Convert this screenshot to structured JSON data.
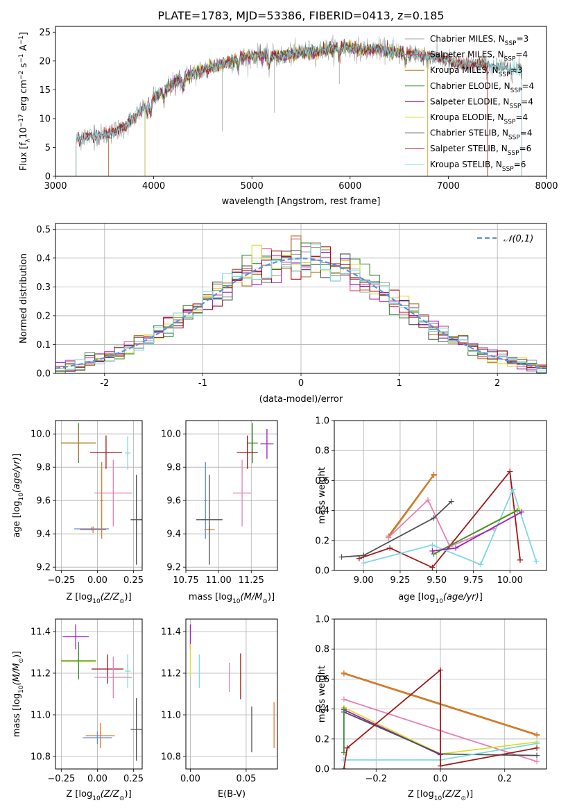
{
  "figure": {
    "title": "PLATE=1783, MJD=53386, FIBERID=0413, z=0.185"
  },
  "chart_data": [
    {
      "id": "spectrum",
      "type": "line",
      "title": "PLATE=1783, MJD=53386, FIBERID=0413, z=0.185",
      "xlabel": "wavelength [Angstrom, rest frame]",
      "ylabel": "Flux [f_λ 10^-17 erg cm^-2 s^-1 A^-1]",
      "xlim": [
        3000,
        8000
      ],
      "ylim": [
        0,
        26
      ],
      "xticks": [
        3000,
        4000,
        5000,
        6000,
        7000,
        8000
      ],
      "yticks": [
        0,
        5,
        10,
        15,
        20,
        25
      ],
      "legend_position": "top-right",
      "observed_spectrum": {
        "x": [
          3210,
          3300,
          3500,
          3700,
          3900,
          4000,
          4150,
          4300,
          4500,
          4700,
          4900,
          5100,
          5300,
          5500,
          5700,
          5900,
          6100,
          6300,
          6500,
          6700,
          6900,
          7100,
          7300,
          7500,
          7700
        ],
        "y": [
          6.2,
          6.8,
          7.2,
          8.5,
          11.8,
          13.5,
          15.5,
          17.0,
          18.5,
          19.5,
          20.5,
          21.0,
          20.8,
          21.5,
          21.8,
          22.5,
          22.0,
          22.0,
          21.5,
          21.0,
          20.5,
          19.5,
          19.5,
          19.0,
          18.5
        ]
      },
      "series": [
        {
          "name": "Chabrier MILES, N_SSP=3",
          "color": "#a0a0a0",
          "x_range": [
            3210,
            7750
          ]
        },
        {
          "name": "Salpeter MILES, N_SSP=4",
          "color": "#d4508a",
          "x_range": [
            3540,
            7400
          ]
        },
        {
          "name": "Kroupa MILES, N_SSP=3",
          "color": "#b07a28",
          "x_range": [
            3540,
            7400
          ]
        },
        {
          "name": "Chabrier ELODIE, N_SSP=4",
          "color": "#3d8a3d",
          "x_range": [
            3910,
            6790
          ]
        },
        {
          "name": "Salpeter ELODIE, N_SSP=4",
          "color": "#9b1fc0",
          "x_range": [
            3910,
            6790
          ]
        },
        {
          "name": "Kroupa ELODIE, N_SSP=4",
          "color": "#d6e02a",
          "x_range": [
            3910,
            6790
          ]
        },
        {
          "name": "Chabrier STELIB, N_SSP=4",
          "color": "#505050",
          "x_range": [
            3210,
            7750
          ]
        },
        {
          "name": "Salpeter STELIB, N_SSP=6",
          "color": "#a01818",
          "x_range": [
            3210,
            7400
          ]
        },
        {
          "name": "Kroupa STELIB, N_SSP=6",
          "color": "#7dd8e0",
          "x_range": [
            3210,
            7750
          ]
        }
      ],
      "legend": [
        "Chabrier MILES, N_SSP=3",
        "Salpeter MILES, N_SSP=4",
        "Kroupa MILES, N_SSP=3",
        "Chabrier ELODIE, N_SSP=4",
        "Salpeter ELODIE, N_SSP=4",
        "Kroupa ELODIE, N_SSP=4",
        "Chabrier STELIB, N_SSP=4",
        "Salpeter STELIB, N_SSP=6",
        "Kroupa STELIB, N_SSP=6"
      ]
    },
    {
      "id": "residuals",
      "type": "line",
      "xlabel": "(data-model)/error",
      "ylabel": "Normed distribution",
      "xlim": [
        -2.5,
        2.5
      ],
      "ylim": [
        0,
        0.52
      ],
      "xticks": [
        -2,
        -1,
        0,
        1,
        2
      ],
      "yticks": [
        0.0,
        0.1,
        0.2,
        0.3,
        0.4,
        0.5
      ],
      "grid": true,
      "legend_position": "top-right",
      "reference_curve": {
        "name": "𝒩(0,1)",
        "mean": 0,
        "sigma": 1,
        "color": "#5b8ee0",
        "style": "dashed"
      },
      "histogram": {
        "bin_width": 0.1,
        "range": [
          -2.5,
          2.5
        ]
      },
      "series_colors": [
        "#a0a0a0",
        "#d4508a",
        "#b07a28",
        "#3d8a3d",
        "#9b1fc0",
        "#d6e02a",
        "#505050",
        "#a01818",
        "#7dd8e0"
      ]
    },
    {
      "id": "age_vs_Z",
      "type": "scatter",
      "xlabel": "Z [log10(Z/Z⊙)]",
      "ylabel": "age [log10(age/yr)]",
      "xlim": [
        -0.29,
        0.31
      ],
      "ylim": [
        9.18,
        10.08
      ],
      "xticks": [
        -0.25,
        0.0,
        0.25
      ],
      "xtick_labels": [
        "−0.25",
        "0.00",
        "0.25"
      ],
      "yticks": [
        9.2,
        9.4,
        9.6,
        9.8,
        10.0
      ],
      "yticks_labels": [
        "9.2",
        "9.4",
        "9.6",
        "9.8",
        "10.0"
      ],
      "grid": true,
      "points": [
        {
          "x": -0.13,
          "y": 9.945,
          "xerr": 0.11,
          "yerr": 0.06,
          "color": "#d6e02a"
        },
        {
          "x": -0.13,
          "y": 9.945,
          "xerr": 0.12,
          "yerr": 0.12,
          "color": "#3d8a3d"
        },
        {
          "x": -0.13,
          "y": 9.945,
          "xerr": 0.12,
          "yerr": 0.09,
          "color": "#b07a28"
        },
        {
          "x": 0.06,
          "y": 9.89,
          "xerr": 0.11,
          "yerr": 0.1,
          "color": "#a01818"
        },
        {
          "x": 0.21,
          "y": 9.885,
          "xerr": 0.02,
          "yerr": 0.1,
          "color": "#7dd8e0"
        },
        {
          "x": 0.11,
          "y": 9.645,
          "xerr": 0.13,
          "yerr": 0.2,
          "color": "#e87fb4"
        },
        {
          "x": 0.03,
          "y": 9.6,
          "xerr": 0.01,
          "yerr": 0.23,
          "color": "#e07b2a"
        },
        {
          "x": -0.03,
          "y": 9.425,
          "xerr": 0.09,
          "yerr": 0.02,
          "color": "#e07b2a"
        },
        {
          "x": -0.04,
          "y": 9.43,
          "xerr": 0.12,
          "yerr": 0.01,
          "color": "#5b8ee0"
        },
        {
          "x": 0.27,
          "y": 9.485,
          "xerr": 0.04,
          "yerr": 0.27,
          "color": "#505050"
        }
      ]
    },
    {
      "id": "age_vs_mass",
      "type": "scatter",
      "xlabel": "mass [log10(M/M⊙)]",
      "xlim": [
        10.75,
        11.45
      ],
      "ylim": [
        9.18,
        10.08
      ],
      "xticks": [
        10.75,
        11.0,
        11.25
      ],
      "xtick_labels": [
        "10.75",
        "11.00",
        "11.25"
      ],
      "yticks": [
        9.2,
        9.4,
        9.6,
        9.8,
        10.0
      ],
      "yticks_labels": [
        "9.2",
        "9.4",
        "9.6",
        "9.8",
        "10.0"
      ],
      "grid": true,
      "points": [
        {
          "x": 11.26,
          "y": 9.945,
          "xerr": 0.04,
          "yerr": 0.06,
          "color": "#d6e02a"
        },
        {
          "x": 11.26,
          "y": 9.945,
          "xerr": 0.04,
          "yerr": 0.12,
          "color": "#3d8a3d"
        },
        {
          "x": 11.37,
          "y": 9.94,
          "xerr": 0.05,
          "yerr": 0.09,
          "color": "#9b1fc0"
        },
        {
          "x": 11.22,
          "y": 9.89,
          "xerr": 0.08,
          "yerr": 0.1,
          "color": "#a01818"
        },
        {
          "x": 11.18,
          "y": 9.645,
          "xerr": 0.07,
          "yerr": 0.2,
          "color": "#e87fb4"
        },
        {
          "x": 10.9,
          "y": 9.6,
          "xerr": 0.01,
          "yerr": 0.23,
          "color": "#5b8ee0"
        },
        {
          "x": 10.93,
          "y": 9.425,
          "xerr": 0.04,
          "yerr": 0.02,
          "color": "#e07b2a"
        },
        {
          "x": 10.93,
          "y": 9.485,
          "xerr": 0.1,
          "yerr": 0.27,
          "color": "#505050"
        }
      ]
    },
    {
      "id": "mass_weight_vs_age",
      "type": "line",
      "xlabel": "age [log10(age/yr)]",
      "ylabel": "mass weight",
      "xlim": [
        8.8,
        10.25
      ],
      "ylim": [
        0,
        1.0
      ],
      "xticks": [
        9.0,
        9.25,
        9.5,
        9.75,
        10.0
      ],
      "xtick_labels": [
        "9.00",
        "9.25",
        "9.50",
        "9.75",
        "10.00"
      ],
      "yticks": [
        0.0,
        0.2,
        0.4,
        0.6,
        0.8,
        1.0
      ],
      "grid": true,
      "series": [
        {
          "color": "#b07a28",
          "x": [
            9.17,
            9.48
          ],
          "y": [
            0.23,
            0.64
          ]
        },
        {
          "color": "#e07b2a",
          "x": [
            9.17,
            9.48
          ],
          "y": [
            0.22,
            0.635
          ]
        },
        {
          "color": "#e87fb4",
          "x": [
            9.17,
            9.44,
            9.59,
            9.89
          ],
          "y": [
            0.22,
            0.47,
            0.16,
            0.28
          ]
        },
        {
          "color": "#505050",
          "x": [
            8.85,
            9.0,
            9.48,
            9.6
          ],
          "y": [
            0.09,
            0.1,
            0.35,
            0.46
          ]
        },
        {
          "color": "#a01818",
          "x": [
            8.97,
            9.18,
            9.47,
            10.0,
            10.07
          ],
          "y": [
            0.08,
            0.15,
            0.02,
            0.66,
            0.07
          ]
        },
        {
          "color": "#7dd8e0",
          "x": [
            9.0,
            9.47,
            9.8,
            10.02,
            10.18
          ],
          "y": [
            0.05,
            0.17,
            0.04,
            0.54,
            0.06
          ]
        },
        {
          "color": "#d6e02a",
          "x": [
            9.5,
            10.06
          ],
          "y": [
            0.12,
            0.41
          ]
        },
        {
          "color": "#3d8a3d",
          "x": [
            9.48,
            10.05
          ],
          "y": [
            0.11,
            0.4
          ]
        },
        {
          "color": "#9b1fc0",
          "x": [
            9.47,
            9.63,
            10.08
          ],
          "y": [
            0.13,
            0.15,
            0.39
          ]
        }
      ]
    },
    {
      "id": "mass_vs_Z",
      "type": "scatter",
      "xlabel": "Z [log10(Z/Z⊙)]",
      "ylabel": "mass [log10(M/M⊙)]",
      "xlim": [
        -0.29,
        0.31
      ],
      "ylim": [
        10.74,
        11.46
      ],
      "xticks": [
        -0.25,
        0.0,
        0.25
      ],
      "xtick_labels": [
        "−0.25",
        "0.00",
        "0.25"
      ],
      "yticks": [
        10.8,
        11.0,
        11.2,
        11.4
      ],
      "grid": true,
      "points": [
        {
          "x": -0.15,
          "y": 11.375,
          "xerr": 0.09,
          "yerr": 0.06,
          "color": "#9b1fc0"
        },
        {
          "x": -0.13,
          "y": 11.255,
          "xerr": 0.12,
          "yerr": 0.05,
          "color": "#d6e02a"
        },
        {
          "x": -0.13,
          "y": 11.26,
          "xerr": 0.12,
          "yerr": 0.09,
          "color": "#3d8a3d"
        },
        {
          "x": 0.07,
          "y": 11.22,
          "xerr": 0.11,
          "yerr": 0.07,
          "color": "#a01818"
        },
        {
          "x": 0.21,
          "y": 11.21,
          "xerr": 0.02,
          "yerr": 0.08,
          "color": "#7dd8e0"
        },
        {
          "x": 0.11,
          "y": 11.18,
          "xerr": 0.13,
          "yerr": 0.1,
          "color": "#e87fb4"
        },
        {
          "x": 0.02,
          "y": 10.9,
          "xerr": 0.1,
          "yerr": 0.06,
          "color": "#e07b2a"
        },
        {
          "x": 0.0,
          "y": 10.89,
          "xerr": 0.1,
          "yerr": 0.03,
          "color": "#5b8ee0"
        },
        {
          "x": 0.27,
          "y": 10.93,
          "xerr": 0.04,
          "yerr": 0.15,
          "color": "#505050"
        }
      ]
    },
    {
      "id": "mass_vs_ebv",
      "type": "scatter",
      "xlabel": "E(B-V)",
      "xlim": [
        -0.004,
        0.078
      ],
      "ylim": [
        10.74,
        11.46
      ],
      "xticks": [
        0.0,
        0.05
      ],
      "xtick_labels": [
        "0.00",
        "0.05"
      ],
      "yticks": [
        10.8,
        11.0,
        11.2,
        11.4
      ],
      "grid": true,
      "points": [
        {
          "x": 0.0,
          "y": 11.375,
          "xerr": 0,
          "yerr": 0.06,
          "color": "#9b1fc0"
        },
        {
          "x": 0.0,
          "y": 11.26,
          "xerr": 0,
          "yerr": 0.08,
          "color": "#d6e02a"
        },
        {
          "x": 0.008,
          "y": 11.21,
          "xerr": 0,
          "yerr": 0.08,
          "color": "#7dd8e0"
        },
        {
          "x": 0.035,
          "y": 11.18,
          "xerr": 0,
          "yerr": 0.07,
          "color": "#e87fb4"
        },
        {
          "x": 0.045,
          "y": 11.185,
          "xerr": 0,
          "yerr": 0.11,
          "color": "#a01818"
        },
        {
          "x": 0.055,
          "y": 10.93,
          "xerr": 0,
          "yerr": 0.11,
          "color": "#505050"
        },
        {
          "x": 0.075,
          "y": 10.95,
          "xerr": 0,
          "yerr": 0.11,
          "color": "#e07b2a"
        }
      ]
    },
    {
      "id": "mass_weight_vs_Z",
      "type": "line",
      "xlabel": "Z [log10(Z/Z⊙)]",
      "ylabel": "mass weight",
      "xlim": [
        -0.33,
        0.33
      ],
      "ylim": [
        0,
        1.0
      ],
      "xticks": [
        -0.2,
        0.0,
        0.2
      ],
      "xtick_labels": [
        "−0.2",
        "0.0",
        "0.2"
      ],
      "yticks": [
        0.0,
        0.2,
        0.4,
        0.6,
        0.8,
        1.0
      ],
      "grid": true,
      "series": [
        {
          "color": "#b07a28",
          "x": [
            -0.3,
            0.3
          ],
          "y": [
            0.64,
            0.23
          ]
        },
        {
          "color": "#e07b2a",
          "x": [
            -0.3,
            0.3
          ],
          "y": [
            0.635,
            0.225
          ]
        },
        {
          "color": "#e87fb4",
          "x": [
            -0.3,
            0.0,
            0.3
          ],
          "y": [
            0.465,
            0.255,
            0.05
          ]
        },
        {
          "color": "#d6e02a",
          "x": [
            -0.3,
            0.0,
            0.3
          ],
          "y": [
            0.41,
            0.1,
            0.18
          ]
        },
        {
          "color": "#9b1fc0",
          "x": [
            -0.3,
            0.0
          ],
          "y": [
            0.395,
            0.095
          ]
        },
        {
          "color": "#505050",
          "x": [
            -0.3,
            0.0,
            0.3
          ],
          "y": [
            0.38,
            0.1,
            0.09
          ]
        },
        {
          "color": "#7dd8e0",
          "x": [
            -0.3,
            0.0,
            0.3
          ],
          "y": [
            0.06,
            0.06,
            0.17
          ]
        },
        {
          "color": "#3d8a3d",
          "x": [
            -0.3,
            -0.3
          ],
          "y": [
            0.11,
            0.4
          ]
        },
        {
          "color": "#a01818",
          "x": [
            -0.3,
            -0.29,
            0.0,
            0.0,
            0.3
          ],
          "y": [
            0.0,
            0.14,
            0.66,
            0.02,
            0.14
          ]
        }
      ]
    }
  ]
}
